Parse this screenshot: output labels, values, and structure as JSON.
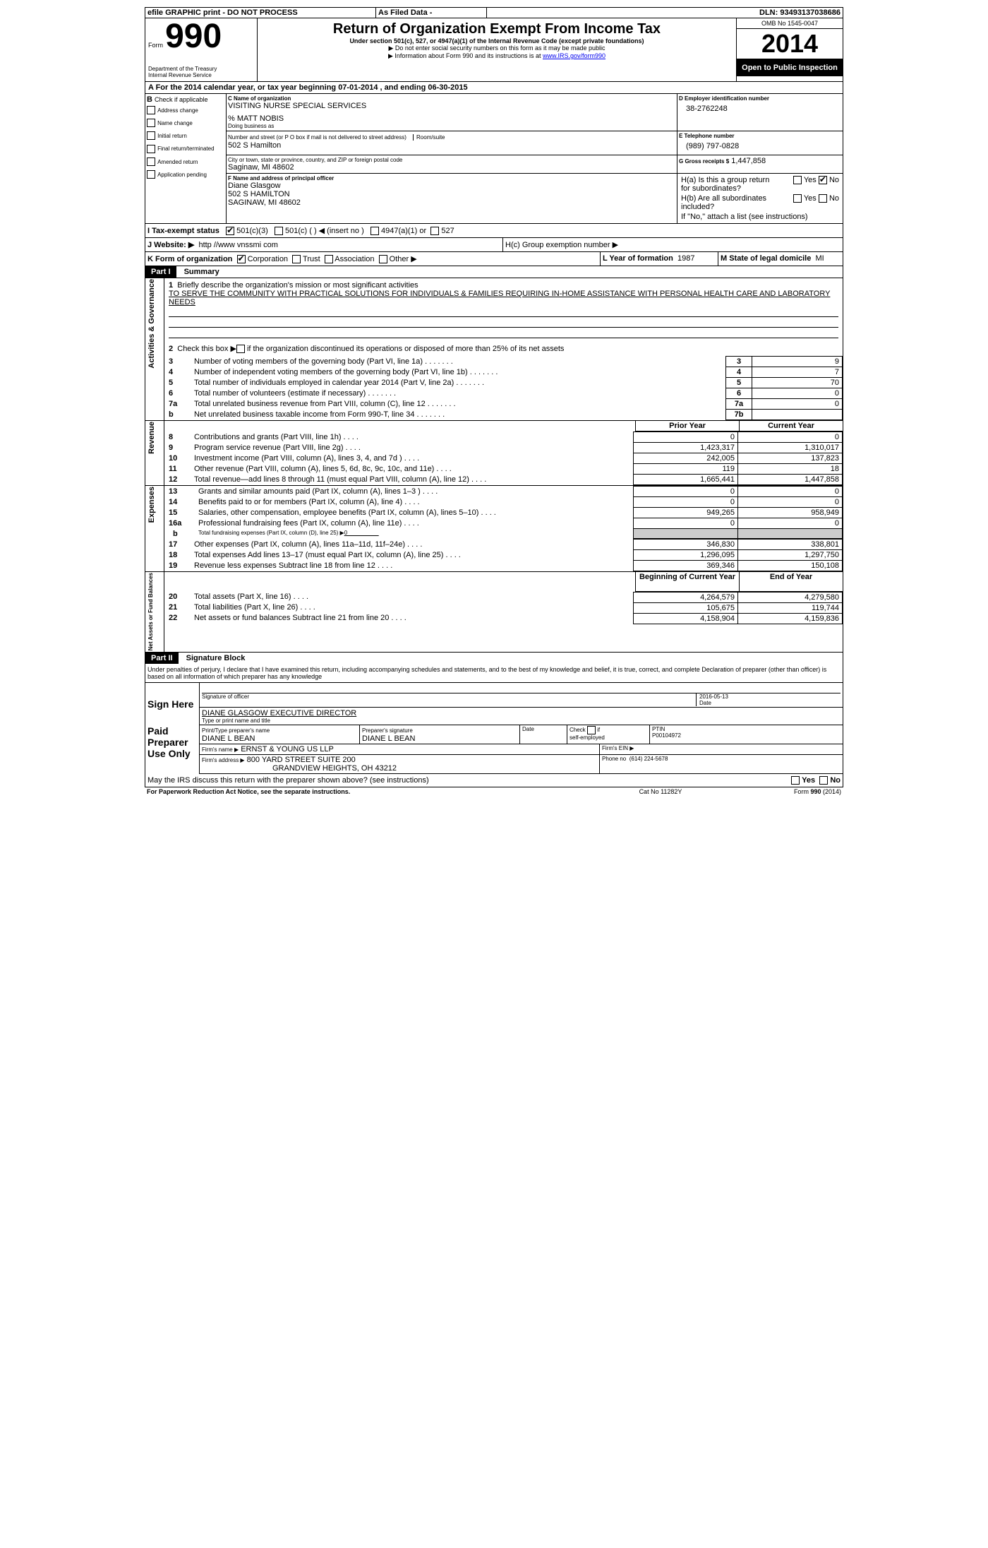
{
  "topbar": {
    "efile": "efile GRAPHIC print - DO NOT PROCESS",
    "asfiled": "As Filed Data -",
    "dln_label": "DLN:",
    "dln": "93493137038686"
  },
  "header": {
    "form_word": "Form",
    "form_num": "990",
    "dept1": "Department of the Treasury",
    "dept2": "Internal Revenue Service",
    "title": "Return of Organization Exempt From Income Tax",
    "subtitle": "Under section 501(c), 527, or 4947(a)(1) of the Internal Revenue Code (except private foundations)",
    "note1": "▶ Do not enter social security numbers on this form as it may be made public",
    "note2_pre": "▶ Information about Form 990 and its instructions is at ",
    "note2_link": "www.IRS.gov/form990",
    "omb": "OMB No 1545-0047",
    "year": "2014",
    "open": "Open to Public Inspection"
  },
  "A": {
    "line": "A For the 2014 calendar year, or tax year beginning 07-01-2014   , and ending 06-30-2015"
  },
  "B": {
    "label": "B",
    "check_label": "Check if applicable",
    "items": [
      "Address change",
      "Name change",
      "Initial return",
      "Final return/terminated",
      "Amended return",
      "Application pending"
    ]
  },
  "C": {
    "name_label": "C Name of organization",
    "org": "VISITING NURSE SPECIAL SERVICES",
    "care": "% MATT NOBIS",
    "dba_label": "Doing business as",
    "street_label": "Number and street (or P O  box if mail is not delivered to street address)",
    "room_label": "Room/suite",
    "street": "502 S Hamilton",
    "city_label": "City or town, state or province, country, and ZIP or foreign postal code",
    "city": "Saginaw, MI  48602"
  },
  "D": {
    "label": "D Employer identification number",
    "ein": "38-2762248"
  },
  "E": {
    "label": "E Telephone number",
    "phone": "(989) 797-0828"
  },
  "G": {
    "label": "G Gross receipts $",
    "val": "1,447,858"
  },
  "F": {
    "label": "F   Name and address of principal officer",
    "name": "Diane Glasgow",
    "addr1": "502 S HAMILTON",
    "addr2": "SAGINAW, MI  48602"
  },
  "H": {
    "a": "H(a)  Is this a group return for subordinates?",
    "b": "H(b)  Are all subordinates included?",
    "b_note": "If \"No,\" attach a list  (see instructions)",
    "c": "H(c)  Group exemption number ▶",
    "yes": "Yes",
    "no": "No"
  },
  "I": {
    "label": "I   Tax-exempt status",
    "o1": "501(c)(3)",
    "o2": "501(c) (   ) ◀ (insert no )",
    "o3": "4947(a)(1) or",
    "o4": "527"
  },
  "J": {
    "label": "J  Website: ▶",
    "site": "http //www vnssmi com"
  },
  "K": {
    "label": "K Form of organization",
    "opts": [
      "Corporation",
      "Trust",
      "Association",
      "Other ▶"
    ]
  },
  "L": {
    "label": "L Year of formation",
    "val": "1987"
  },
  "M": {
    "label": "M State of legal domicile",
    "val": "MI"
  },
  "part1": {
    "hdr": "Part I",
    "title": "Summary",
    "l1a": "Briefly describe the organization's mission or most significant activities",
    "mission": "TO SERVE THE COMMUNITY WITH PRACTICAL SOLUTIONS FOR INDIVIDUALS & FAMILIES REQUIRING IN-HOME ASSISTANCE WITH PERSONAL HEALTH CARE AND LABORATORY NEEDS",
    "l2": "Check this box ▶    if the organization discontinued its operations or disposed of more than 25% of its net assets",
    "rows_gov": [
      {
        "n": "3",
        "t": "Number of voting members of the governing body (Part VI, line 1a)",
        "rn": "3",
        "v": "9"
      },
      {
        "n": "4",
        "t": "Number of independent voting members of the governing body (Part VI, line 1b)",
        "rn": "4",
        "v": "7"
      },
      {
        "n": "5",
        "t": "Total number of individuals employed in calendar year 2014 (Part V, line 2a)",
        "rn": "5",
        "v": "70"
      },
      {
        "n": "6",
        "t": "Total number of volunteers (estimate if necessary)",
        "rn": "6",
        "v": "0"
      },
      {
        "n": "7a",
        "t": "Total unrelated business revenue from Part VIII, column (C), line 12",
        "rn": "7a",
        "v": "0"
      },
      {
        "n": "b",
        "t": "Net unrelated business taxable income from Form 990-T, line 34",
        "rn": "7b",
        "v": ""
      }
    ],
    "col_py": "Prior Year",
    "col_cy": "Current Year",
    "rows_rev": [
      {
        "n": "8",
        "t": "Contributions and grants (Part VIII, line 1h)",
        "py": "0",
        "cy": "0"
      },
      {
        "n": "9",
        "t": "Program service revenue (Part VIII, line 2g)",
        "py": "1,423,317",
        "cy": "1,310,017"
      },
      {
        "n": "10",
        "t": "Investment income (Part VIII, column (A), lines 3, 4, and 7d )",
        "py": "242,005",
        "cy": "137,823"
      },
      {
        "n": "11",
        "t": "Other revenue (Part VIII, column (A), lines 5, 6d, 8c, 9c, 10c, and 11e)",
        "py": "119",
        "cy": "18"
      },
      {
        "n": "12",
        "t": "Total revenue—add lines 8 through 11 (must equal Part VIII, column (A), line 12)",
        "py": "1,665,441",
        "cy": "1,447,858"
      }
    ],
    "rows_exp": [
      {
        "n": "13",
        "t": "Grants and similar amounts paid (Part IX, column (A), lines 1–3 )",
        "py": "0",
        "cy": "0"
      },
      {
        "n": "14",
        "t": "Benefits paid to or for members (Part IX, column (A), line 4)",
        "py": "0",
        "cy": "0"
      },
      {
        "n": "15",
        "t": "Salaries, other compensation, employee benefits (Part IX, column (A), lines 5–10)",
        "py": "949,265",
        "cy": "958,949"
      },
      {
        "n": "16a",
        "t": "Professional fundraising fees (Part IX, column (A), line 11e)",
        "py": "0",
        "cy": "0"
      }
    ],
    "row16b": {
      "n": "b",
      "t": "Total fundraising expenses (Part IX, column (D), line 25) ▶",
      "v": "0"
    },
    "rows_exp2": [
      {
        "n": "17",
        "t": "Other expenses (Part IX, column (A), lines 11a–11d, 11f–24e)",
        "py": "346,830",
        "cy": "338,801"
      },
      {
        "n": "18",
        "t": "Total expenses  Add lines 13–17 (must equal Part IX, column (A), line 25)",
        "py": "1,296,095",
        "cy": "1,297,750"
      },
      {
        "n": "19",
        "t": "Revenue less expenses  Subtract line 18 from line 12",
        "py": "369,346",
        "cy": "150,108"
      }
    ],
    "col_boy": "Beginning of Current Year",
    "col_eoy": "End of Year",
    "rows_bal": [
      {
        "n": "20",
        "t": "Total assets (Part X, line 16)",
        "py": "4,264,579",
        "cy": "4,279,580"
      },
      {
        "n": "21",
        "t": "Total liabilities (Part X, line 26)",
        "py": "105,675",
        "cy": "119,744"
      },
      {
        "n": "22",
        "t": "Net assets or fund balances  Subtract line 21 from line 20",
        "py": "4,158,904",
        "cy": "4,159,836"
      }
    ],
    "side_gov": "Activities & Governance",
    "side_rev": "Revenue",
    "side_exp": "Expenses",
    "side_bal": "Net Assets or Fund Balances"
  },
  "part2": {
    "hdr": "Part II",
    "title": "Signature Block",
    "decl": "Under penalties of perjury, I declare that I have examined this return, including accompanying schedules and statements, and to the best of my knowledge and belief, it is true, correct, and complete  Declaration of preparer (other than officer) is based on all information of which preparer has any knowledge",
    "sign_here": "Sign Here",
    "sig_off": "Signature of officer",
    "date": "Date",
    "date_v": "2016-05-13",
    "name_title": "DIANE GLASGOW EXECUTIVE DIRECTOR",
    "type_name": "Type or print name and title",
    "paid": "Paid Preparer Use Only",
    "prep_name_l": "Print/Type preparer's name",
    "prep_name": "DIANE L BEAN",
    "prep_sig_l": "Preparer's signature",
    "prep_sig": "DIANE L BEAN",
    "check_se": "Check     if self-employed",
    "ptin_l": "PTIN",
    "ptin": "P00104972",
    "firm_name_l": "Firm's name    ▶",
    "firm_name": "ERNST & YOUNG US LLP",
    "firm_ein_l": "Firm's EIN ▶",
    "firm_addr_l": "Firm's address ▶",
    "firm_addr1": "800 YARD STREET SUITE 200",
    "firm_addr2": "GRANDVIEW HEIGHTS, OH  43212",
    "phone_l": "Phone no",
    "phone": "(614) 224-5678",
    "discuss": "May the IRS discuss this return with the preparer shown above? (see instructions)",
    "yes": "Yes",
    "no": "No"
  },
  "footer": {
    "pra": "For Paperwork Reduction Act Notice, see the separate instructions.",
    "cat": "Cat No 11282Y",
    "form": "Form 990 (2014)"
  }
}
